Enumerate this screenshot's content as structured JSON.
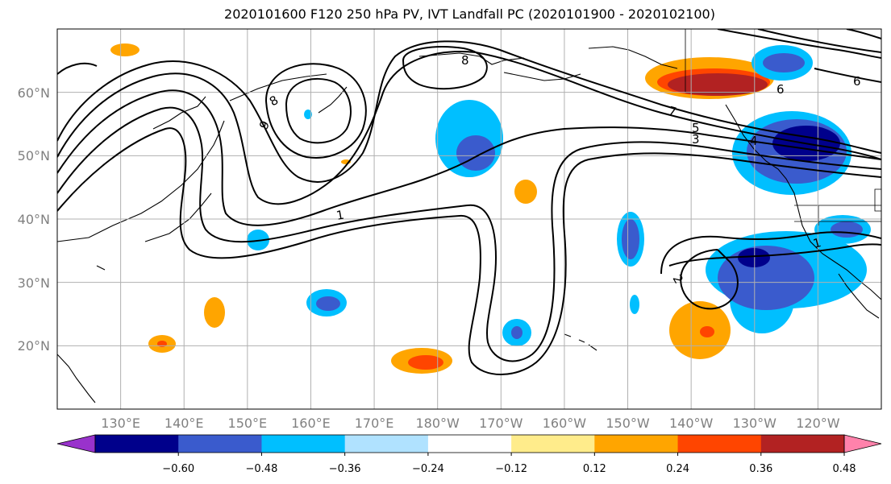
{
  "title": "2020101600 F120 250 hPa PV, IVT Landfall PC (2020101900 - 2020102100)",
  "map": {
    "projection": "equirectangular",
    "lon_range": [
      120,
      250
    ],
    "lat_range": [
      10,
      70
    ],
    "lat_labels": [
      "20°N",
      "30°N",
      "40°N",
      "50°N",
      "60°N"
    ],
    "lon_labels": [
      "130°E",
      "140°E",
      "150°E",
      "160°E",
      "170°E",
      "180°W",
      "170°W",
      "160°W",
      "150°W",
      "140°W",
      "130°W",
      "120°W"
    ],
    "grid": true,
    "contour_labels": [
      "1",
      "2",
      "3",
      "5",
      "6",
      "7",
      "8",
      "8",
      "9",
      "4",
      "1",
      "6"
    ]
  },
  "colorbar": {
    "ticks": [
      "−0.60",
      "−0.48",
      "−0.36",
      "−0.24",
      "−0.12",
      "0.12",
      "0.24",
      "0.36",
      "0.48",
      "0.60"
    ],
    "colors": [
      "#9932cc",
      "#00008b",
      "#3a5bcd",
      "#00bfff",
      "#b0e2ff",
      "#ffffff",
      "#ffec8b",
      "#ffa500",
      "#ff4500",
      "#b22222",
      "#ff82ab"
    ],
    "extend": "both"
  },
  "chart_data": {
    "type": "heatmap",
    "title": "2020101600 F120 250 hPa PV, IVT Landfall PC (2020101900 - 2020102100)",
    "xlabel": "",
    "ylabel": "",
    "contour_variable": "250 hPa PV",
    "fill_variable": "IVT Landfall PC",
    "fill_levels": [
      -0.6,
      -0.48,
      -0.36,
      -0.24,
      -0.12,
      0.12,
      0.24,
      0.36,
      0.48,
      0.6
    ],
    "regions": [
      {
        "lon": 136,
        "lat": 66,
        "value": 0.24
      },
      {
        "lon": 181,
        "lat": 52,
        "value": -0.36
      },
      {
        "lon": 235,
        "lat": 51,
        "value": -0.48
      },
      {
        "lon": 227,
        "lat": 63,
        "value": 0.48
      },
      {
        "lon": 230,
        "lat": 33,
        "value": -0.48
      },
      {
        "lon": 239,
        "lat": 40,
        "value": -0.36
      },
      {
        "lon": 208,
        "lat": 38,
        "value": -0.36
      },
      {
        "lon": 222,
        "lat": 23,
        "value": 0.36
      },
      {
        "lon": 182,
        "lat": 18,
        "value": 0.36
      },
      {
        "lon": 162,
        "lat": 26,
        "value": -0.36
      },
      {
        "lon": 169,
        "lat": 44,
        "value": 0.24
      },
      {
        "lon": 154,
        "lat": 37,
        "value": -0.24
      },
      {
        "lon": 144,
        "lat": 25,
        "value": 0.24
      },
      {
        "lon": 136,
        "lat": 20,
        "value": 0.36
      },
      {
        "lon": 191,
        "lat": 22,
        "value": -0.24
      },
      {
        "lon": 234,
        "lat": 63,
        "value": -0.36
      }
    ]
  }
}
